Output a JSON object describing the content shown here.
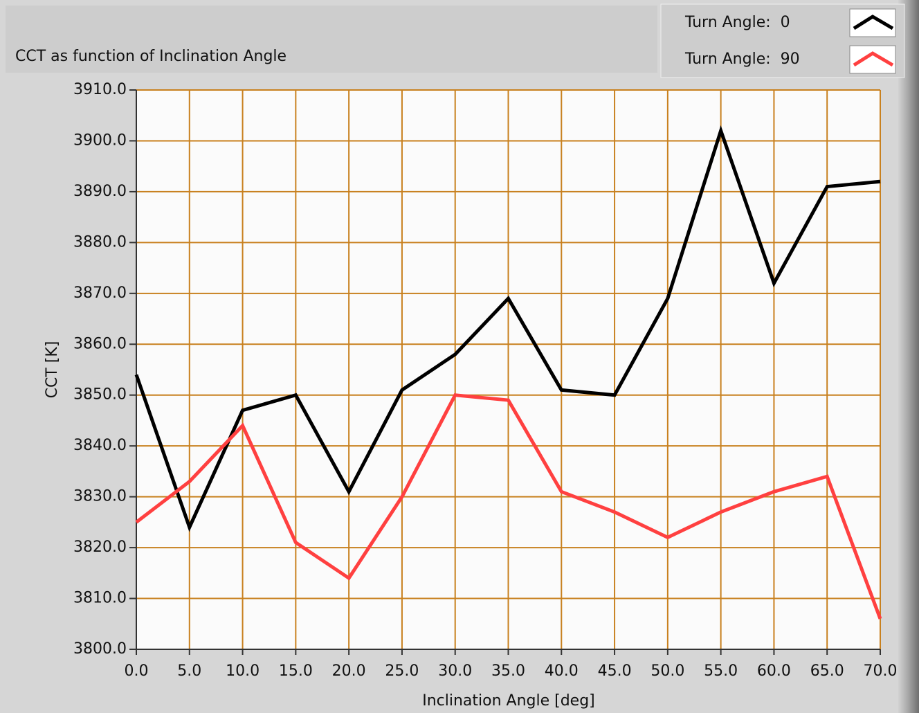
{
  "chart_data": {
    "type": "line",
    "title": "CCT as function of Inclination Angle",
    "x_label": "Inclination Angle [deg]",
    "y_label": "CCT [K]",
    "x": [
      0,
      5,
      10,
      15,
      20,
      25,
      30,
      35,
      40,
      45,
      50,
      55,
      60,
      65,
      70
    ],
    "series": [
      {
        "name": "Turn Angle:  0",
        "color": "#000000",
        "values": [
          3854,
          3824,
          3847,
          3850,
          3831,
          3851,
          3858,
          3869,
          3851,
          3850,
          3869,
          3902,
          3872,
          3891,
          3892
        ]
      },
      {
        "name": "Turn Angle:  90",
        "color": "#ff4040",
        "values": [
          3825,
          3833,
          3844,
          3821,
          3814,
          3830,
          3850,
          3849,
          3831,
          3827,
          3822,
          3827,
          3831,
          3834,
          3806
        ]
      }
    ],
    "xlim": [
      0,
      70
    ],
    "xticks": [
      {
        "value": 0,
        "label": "0.0"
      },
      {
        "value": 5,
        "label": "5.0"
      },
      {
        "value": 10,
        "label": "10.0"
      },
      {
        "value": 15,
        "label": "15.0"
      },
      {
        "value": 20,
        "label": "20.0"
      },
      {
        "value": 25,
        "label": "25.0"
      },
      {
        "value": 30,
        "label": "30.0"
      },
      {
        "value": 35,
        "label": "35.0"
      },
      {
        "value": 40,
        "label": "40.0"
      },
      {
        "value": 45,
        "label": "45.0"
      },
      {
        "value": 50,
        "label": "50.0"
      },
      {
        "value": 55,
        "label": "55.0"
      },
      {
        "value": 60,
        "label": "60.0"
      },
      {
        "value": 65,
        "label": "65.0"
      },
      {
        "value": 70,
        "label": "70.0"
      }
    ],
    "ylim": [
      3800,
      3910
    ],
    "yticks": [
      {
        "value": 3800,
        "label": "3800.0"
      },
      {
        "value": 3810,
        "label": "3810.0"
      },
      {
        "value": 3820,
        "label": "3820.0"
      },
      {
        "value": 3830,
        "label": "3830.0"
      },
      {
        "value": 3840,
        "label": "3840.0"
      },
      {
        "value": 3850,
        "label": "3850.0"
      },
      {
        "value": 3860,
        "label": "3860.0"
      },
      {
        "value": 3870,
        "label": "3870.0"
      },
      {
        "value": 3880,
        "label": "3880.0"
      },
      {
        "value": 3890,
        "label": "3890.0"
      },
      {
        "value": 3900,
        "label": "3900.0"
      },
      {
        "value": 3910,
        "label": "3910.0"
      }
    ],
    "grid": true,
    "grid_color": "#c8801e",
    "legend": "top-right"
  }
}
